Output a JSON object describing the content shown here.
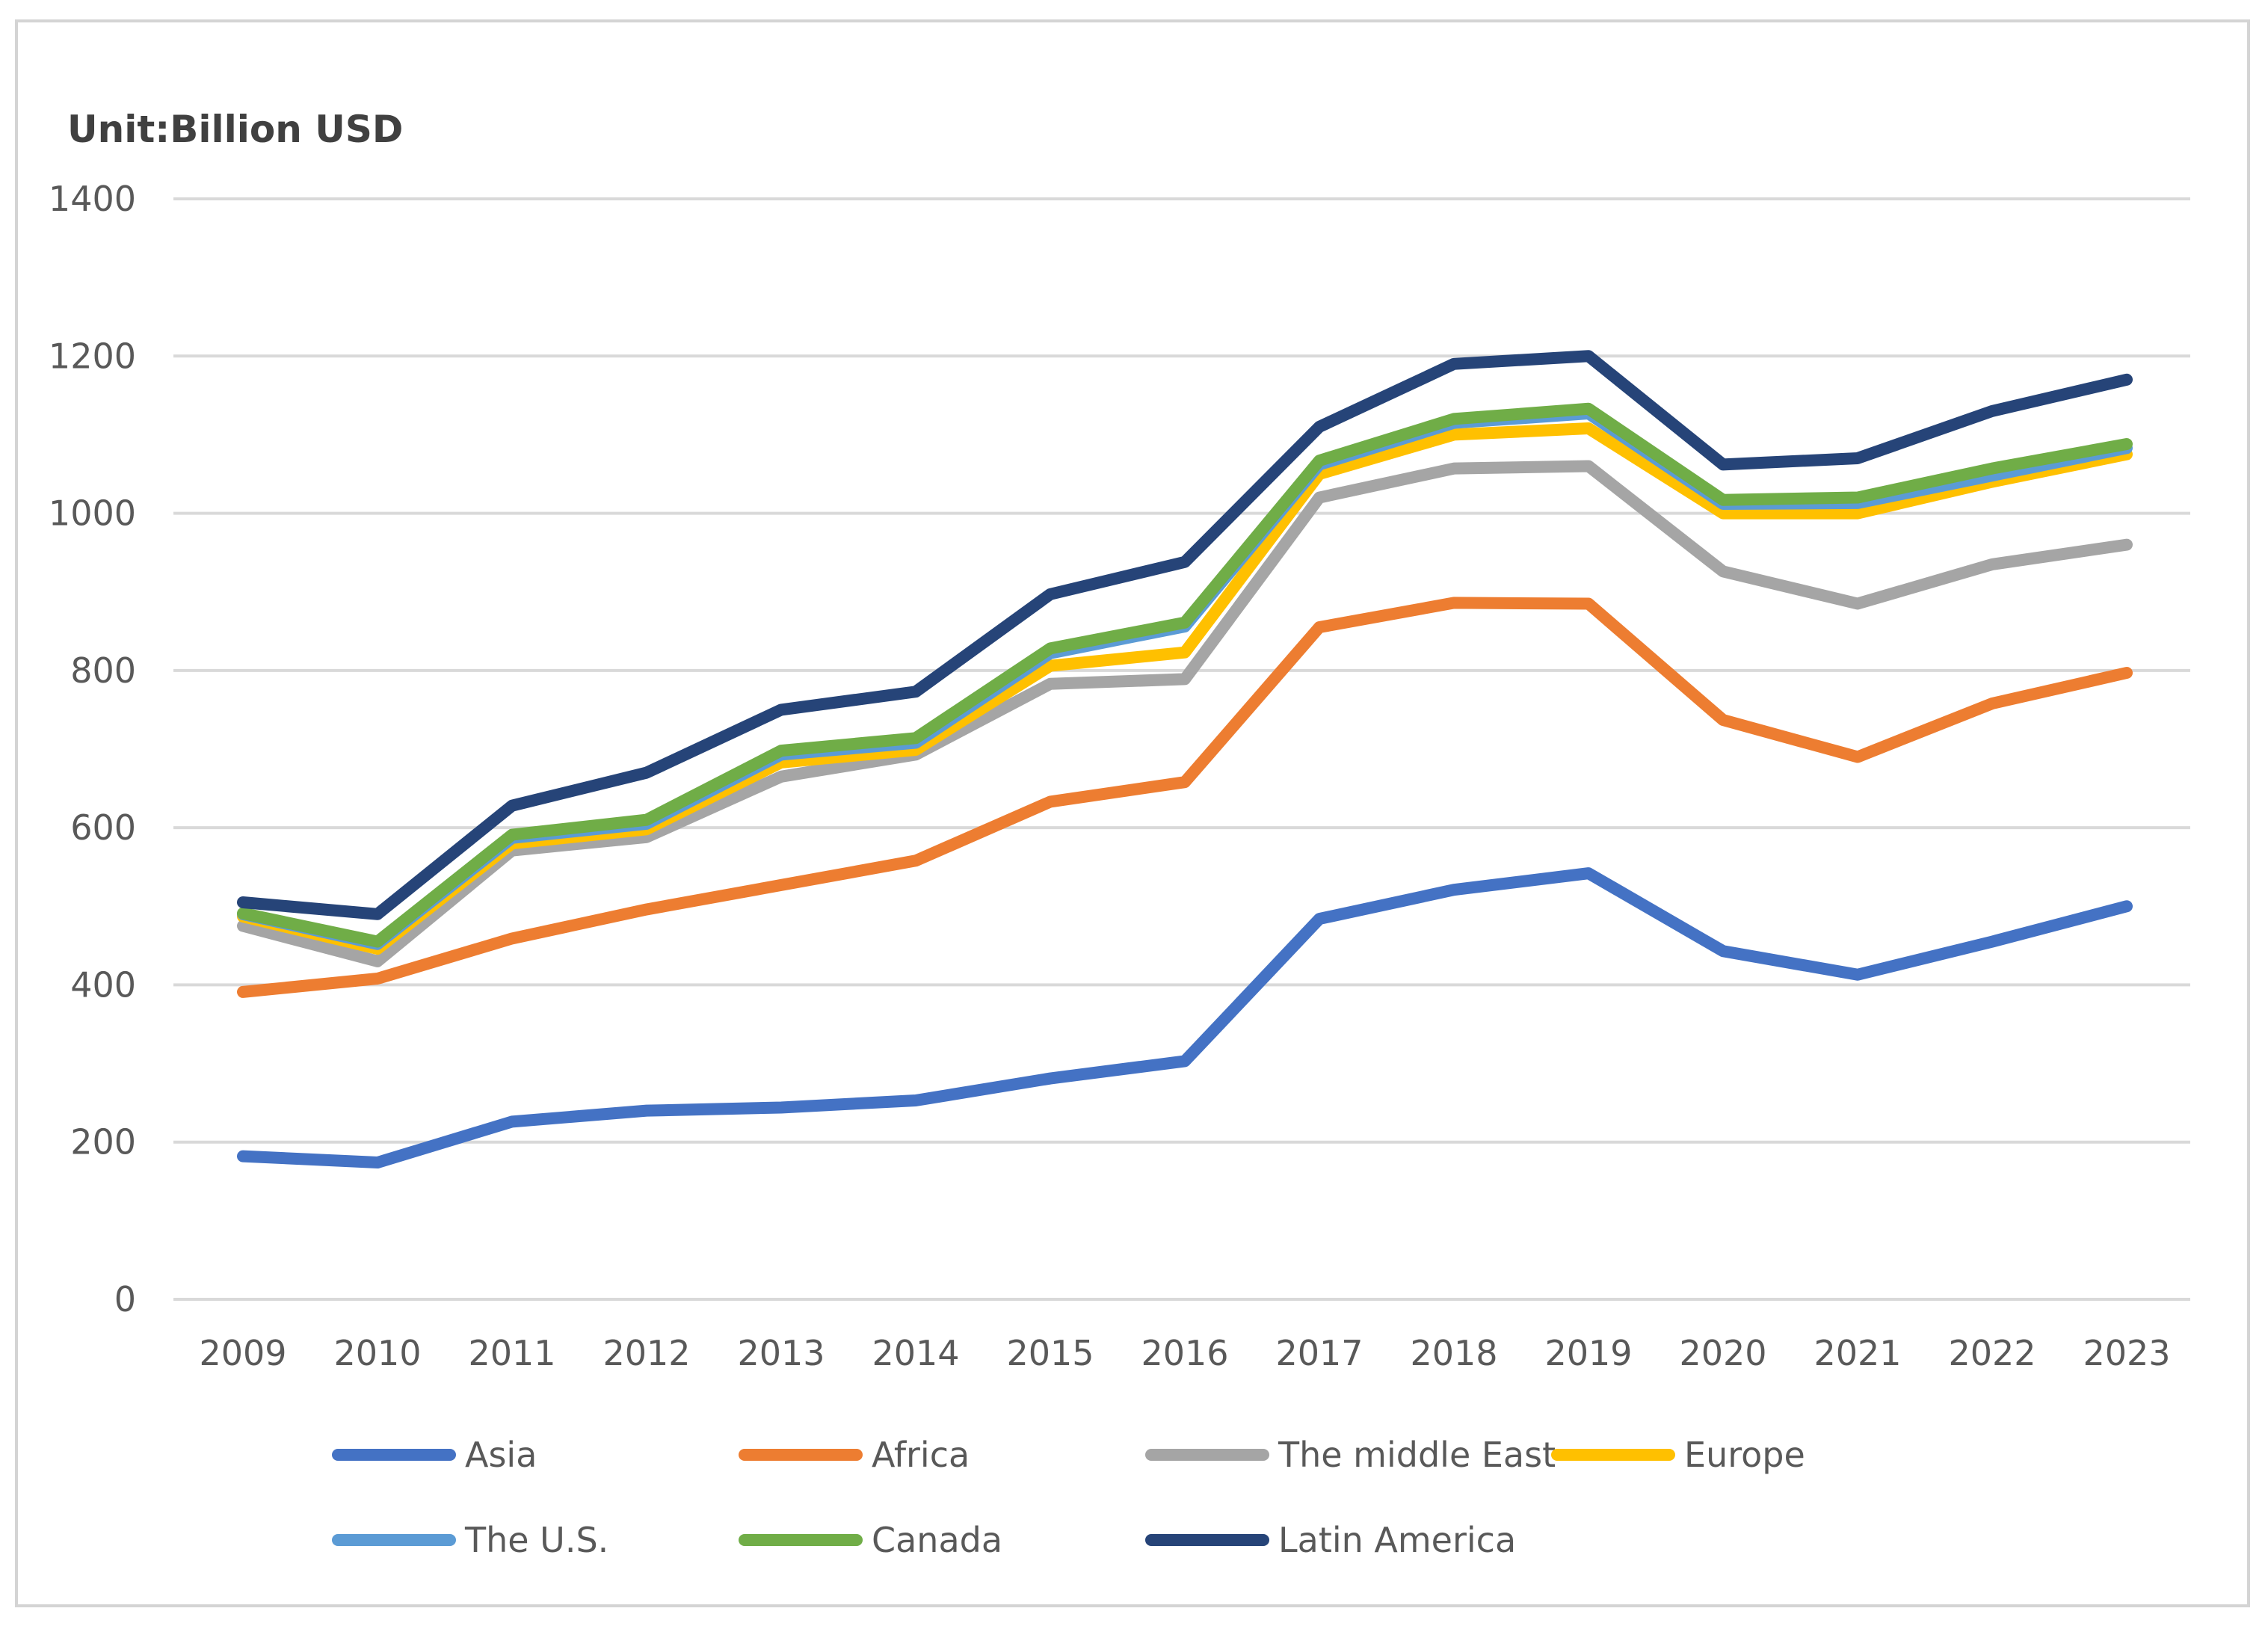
{
  "chart_data": {
    "type": "line",
    "title": "Unit:Billion USD",
    "xlabel": "",
    "ylabel": "",
    "ylim": [
      0,
      1400
    ],
    "y_ticks": [
      "0",
      "200",
      "400",
      "600",
      "800",
      "1000",
      "1200",
      "1400"
    ],
    "y_tick_values": [
      0,
      200,
      400,
      600,
      800,
      1000,
      1200,
      1400
    ],
    "categories": [
      "2009",
      "2010",
      "2011",
      "2012",
      "2013",
      "2014",
      "2015",
      "2016",
      "2017",
      "2018",
      "2019",
      "2020",
      "2021",
      "2022",
      "2023"
    ],
    "grid": true,
    "legend_position": "bottom",
    "series": [
      {
        "name": "Asia",
        "color": "#4472c4",
        "values": [
          182,
          174,
          226,
          240,
          244,
          253,
          281,
          303,
          484,
          521,
          542,
          443,
          413,
          455,
          500
        ]
      },
      {
        "name": "Africa",
        "color": "#ed7d31",
        "values": [
          391,
          408,
          459,
          496,
          527,
          558,
          633,
          658,
          855,
          886,
          885,
          737,
          690,
          758,
          797
        ]
      },
      {
        "name": "The middle East",
        "color": "#a5a5a5",
        "values": [
          475,
          430,
          571,
          588,
          665,
          693,
          783,
          789,
          1020,
          1057,
          1060,
          926,
          885,
          935,
          960
        ]
      },
      {
        "name": "Europe",
        "color": "#ffc000",
        "values": [
          487,
          446,
          580,
          598,
          683,
          699,
          806,
          823,
          1050,
          1100,
          1108,
          1000,
          1000,
          1040,
          1075
        ]
      },
      {
        "name": "The U.S.",
        "color": "#5b9bd5",
        "values": [
          490,
          452,
          587,
          605,
          693,
          708,
          822,
          856,
          1062,
          1115,
          1127,
          1012,
          1013,
          1048,
          1083
        ]
      },
      {
        "name": "Canada",
        "color": "#70ad47",
        "values": [
          491,
          455,
          591,
          610,
          698,
          714,
          828,
          861,
          1067,
          1120,
          1133,
          1017,
          1020,
          1057,
          1088
        ]
      },
      {
        "name": "Latin America",
        "color": "#264478",
        "values": [
          505,
          490,
          628,
          670,
          750,
          773,
          897,
          938,
          1110,
          1190,
          1200,
          1062,
          1070,
          1130,
          1170
        ]
      }
    ]
  }
}
